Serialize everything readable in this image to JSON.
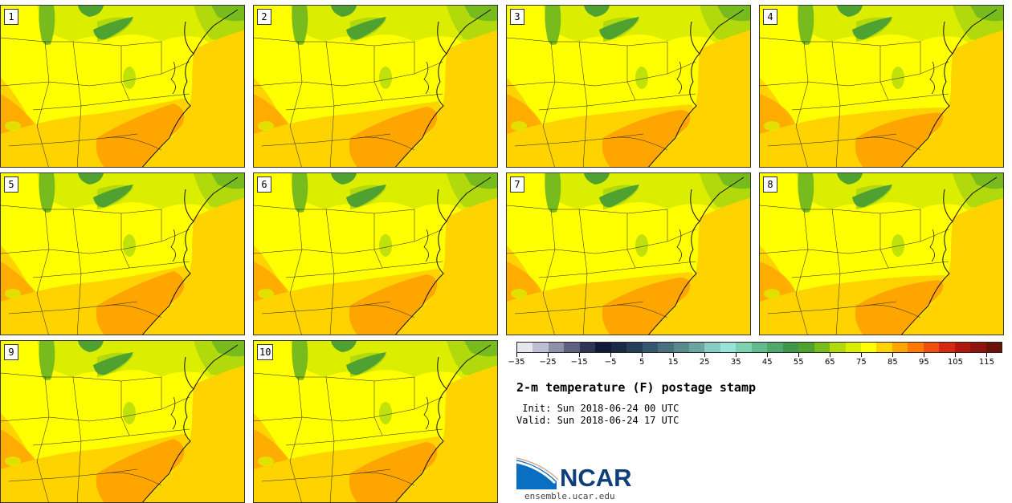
{
  "panels": [
    {
      "label": "1"
    },
    {
      "label": "2"
    },
    {
      "label": "3"
    },
    {
      "label": "4"
    },
    {
      "label": "5"
    },
    {
      "label": "6"
    },
    {
      "label": "7"
    },
    {
      "label": "8"
    },
    {
      "label": "9"
    },
    {
      "label": "10"
    }
  ],
  "colorbar": {
    "colors": [
      "#e6e6ee",
      "#bfbfd4",
      "#8f8faa",
      "#5f6080",
      "#2e3454",
      "#101a38",
      "#1b2a45",
      "#263d5a",
      "#35566f",
      "#48707f",
      "#5a8a8e",
      "#6aa5a2",
      "#86cbc4",
      "#98e2da",
      "#7dd1ae",
      "#63ba8c",
      "#50a86c",
      "#3f964d",
      "#4fa22f",
      "#78bb1d",
      "#b1d90c",
      "#dcee00",
      "#ffff00",
      "#ffd300",
      "#ffa500",
      "#ff7a00",
      "#f04f10",
      "#d52a12",
      "#b0180e",
      "#8e140d",
      "#6a1208"
    ],
    "tick_labels": [
      "−35",
      "−25",
      "−15",
      "−5",
      "5",
      "15",
      "25",
      "35",
      "45",
      "55",
      "65",
      "75",
      "85",
      "95",
      "105",
      "115"
    ]
  },
  "title": "2-m temperature (F) postage stamp",
  "init": " Init: Sun 2018-06-24 00 UTC",
  "valid": "Valid: Sun 2018-06-24 17 UTC",
  "logo": {
    "text": "NCAR",
    "url": "ensemble.ucar.edu"
  }
}
